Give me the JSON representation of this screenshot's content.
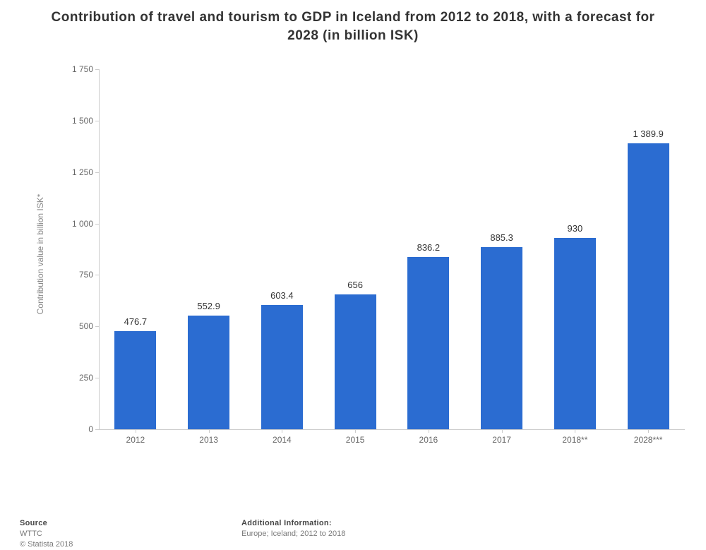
{
  "chart": {
    "type": "bar",
    "title": "Contribution of travel and tourism to GDP in Iceland from 2012 to 2018, with a forecast for 2028 (in billion ISK)",
    "title_fontsize": 19,
    "title_color": "#333333",
    "ylabel": "Contribution value in billion ISK*",
    "label_fontsize": 12,
    "background_color": "#ffffff",
    "axis_color": "#cccccc",
    "tick_color": "#666666",
    "categories": [
      "2012",
      "2013",
      "2014",
      "2015",
      "2016",
      "2017",
      "2018**",
      "2028***"
    ],
    "values": [
      476.7,
      552.9,
      603.4,
      656,
      836.2,
      885.3,
      930,
      1389.9
    ],
    "value_labels": [
      "476.7",
      "552.9",
      "603.4",
      "656",
      "836.2",
      "885.3",
      "930",
      "1 389.9"
    ],
    "bar_color": "#2b6cd1",
    "ylim": [
      0,
      1750
    ],
    "ytick_step": 250,
    "ytick_labels": [
      "0",
      "250",
      "500",
      "750",
      "1 000",
      "1 250",
      "1 500",
      "1 750"
    ],
    "bar_width_ratio": 0.57,
    "value_label_fontsize": 13,
    "value_label_color": "#333333"
  },
  "footer": {
    "source_heading": "Source",
    "source_text": "WTTC",
    "copyright": "© Statista 2018",
    "info_heading": "Additional Information:",
    "info_text": "Europe; Iceland; 2012 to 2018"
  }
}
